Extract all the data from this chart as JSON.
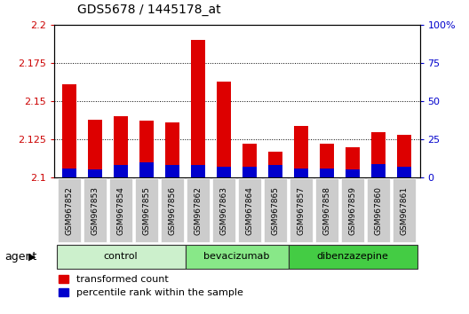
{
  "title": "GDS5678 / 1445178_at",
  "samples": [
    "GSM967852",
    "GSM967853",
    "GSM967854",
    "GSM967855",
    "GSM967856",
    "GSM967862",
    "GSM967863",
    "GSM967864",
    "GSM967865",
    "GSM967857",
    "GSM967858",
    "GSM967859",
    "GSM967860",
    "GSM967861"
  ],
  "transformed_count": [
    2.161,
    2.138,
    2.14,
    2.137,
    2.136,
    2.19,
    2.163,
    2.122,
    2.117,
    2.134,
    2.122,
    2.12,
    2.13,
    2.128
  ],
  "percentile_rank": [
    6,
    5,
    8,
    10,
    8,
    8,
    7,
    7,
    8,
    6,
    6,
    5,
    9,
    7
  ],
  "y_min": 2.1,
  "y_max": 2.2,
  "y_ticks": [
    2.1,
    2.125,
    2.15,
    2.175,
    2.2
  ],
  "y_tick_labels": [
    "2.1",
    "2.125",
    "2.15",
    "2.175",
    "2.2"
  ],
  "y2_ticks": [
    0,
    25,
    50,
    75,
    100
  ],
  "y2_tick_labels": [
    "0",
    "25",
    "50",
    "75",
    "100%"
  ],
  "groups": [
    {
      "label": "control",
      "start": 0,
      "end": 5,
      "color": "#ccf0cc"
    },
    {
      "label": "bevacizumab",
      "start": 5,
      "end": 9,
      "color": "#88e888"
    },
    {
      "label": "dibenzazepine",
      "start": 9,
      "end": 14,
      "color": "#44cc44"
    }
  ],
  "agent_label": "agent",
  "bar_color_red": "#dd0000",
  "bar_color_blue": "#0000cc",
  "background_color": "#ffffff",
  "tick_label_color_left": "#cc0000",
  "tick_label_color_right": "#0000cc",
  "bar_width": 0.55,
  "grid_color": "#000000",
  "sample_bg_color": "#cccccc"
}
